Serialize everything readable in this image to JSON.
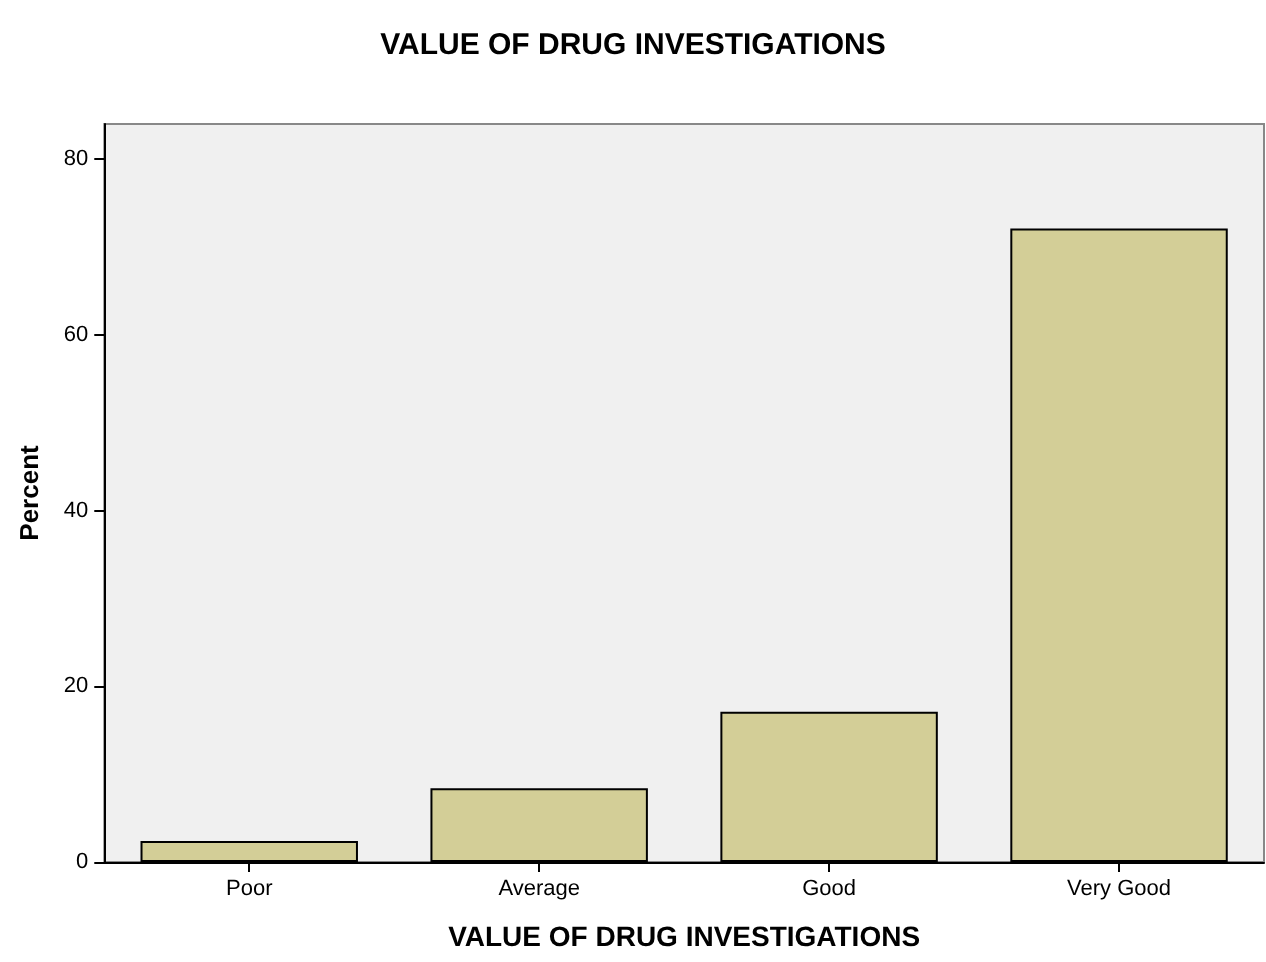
{
  "chart_data": {
    "type": "bar",
    "title": "VALUE OF DRUG INVESTIGATIONS",
    "xlabel": "VALUE OF DRUG INVESTIGATIONS",
    "ylabel": "Percent",
    "categories": [
      "Poor",
      "Average",
      "Good",
      "Very Good"
    ],
    "values": [
      2.4,
      8.4,
      17.1,
      72.1
    ],
    "color": "#d3ce97",
    "ylim": [
      0,
      84
    ],
    "yticks": [
      0,
      20,
      40,
      60,
      80
    ],
    "grid": false
  }
}
